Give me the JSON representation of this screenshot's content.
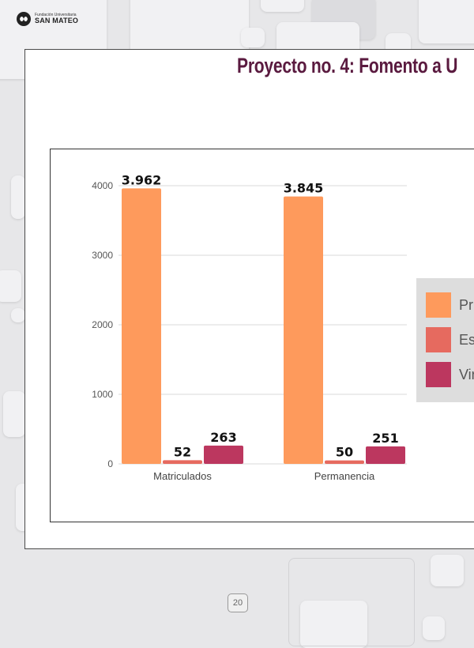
{
  "header": {
    "logo_small": "Fundación Universitaria",
    "logo_big": "SAN MATEO"
  },
  "slide": {
    "title": "Proyecto no. 4: Fomento a U",
    "page_number": "20"
  },
  "colors": {
    "title": "#5a1a3f",
    "series": [
      "#fe9a5c",
      "#e66a5f",
      "#bc375f"
    ]
  },
  "legend": {
    "items": [
      {
        "label": "Pr"
      },
      {
        "label": "Esp"
      },
      {
        "label": "Vir"
      }
    ]
  },
  "chart_data": {
    "type": "bar",
    "categories": [
      "Matriculados",
      "Permanencia"
    ],
    "series": [
      {
        "name": "Pr",
        "values": [
          3962,
          3845
        ],
        "labels": [
          "3.962",
          "3.845"
        ]
      },
      {
        "name": "Esp",
        "values": [
          52,
          50
        ],
        "labels": [
          "52",
          "50"
        ]
      },
      {
        "name": "Vir",
        "values": [
          263,
          251
        ],
        "labels": [
          "263",
          "251"
        ]
      }
    ],
    "yticks": [
      "0",
      "1000",
      "2000",
      "3000",
      "4000"
    ],
    "ylim": [
      0,
      4000
    ],
    "grid": true,
    "legend_position": "right"
  }
}
